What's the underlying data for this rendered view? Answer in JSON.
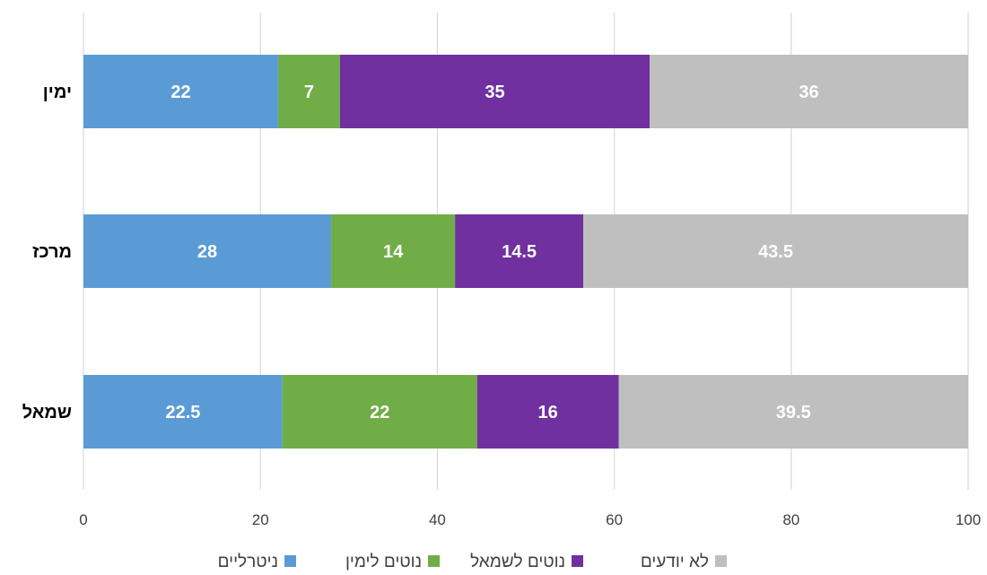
{
  "chart_data": {
    "type": "bar",
    "orientation": "horizontal",
    "stacked": true,
    "categories": [
      "ימין",
      "מרכז",
      "שמאל"
    ],
    "series": [
      {
        "name": "ניטרליים",
        "color": "#5b9bd5",
        "values": [
          22,
          28,
          22.5
        ]
      },
      {
        "name": "נוטים לימין",
        "color": "#70ad47",
        "values": [
          7,
          14,
          22
        ]
      },
      {
        "name": "נוטים לשמאל",
        "color": "#7030a0",
        "values": [
          35,
          14.5,
          16
        ]
      },
      {
        "name": "לא יודעים",
        "color": "#bfbfbf",
        "values": [
          36,
          43.5,
          39.5
        ]
      }
    ],
    "xlim": [
      0,
      100
    ],
    "xticks": [
      0,
      20,
      40,
      60,
      80,
      100
    ],
    "grid": true,
    "legend": "bottom",
    "title": "",
    "xlabel": "",
    "ylabel": ""
  }
}
